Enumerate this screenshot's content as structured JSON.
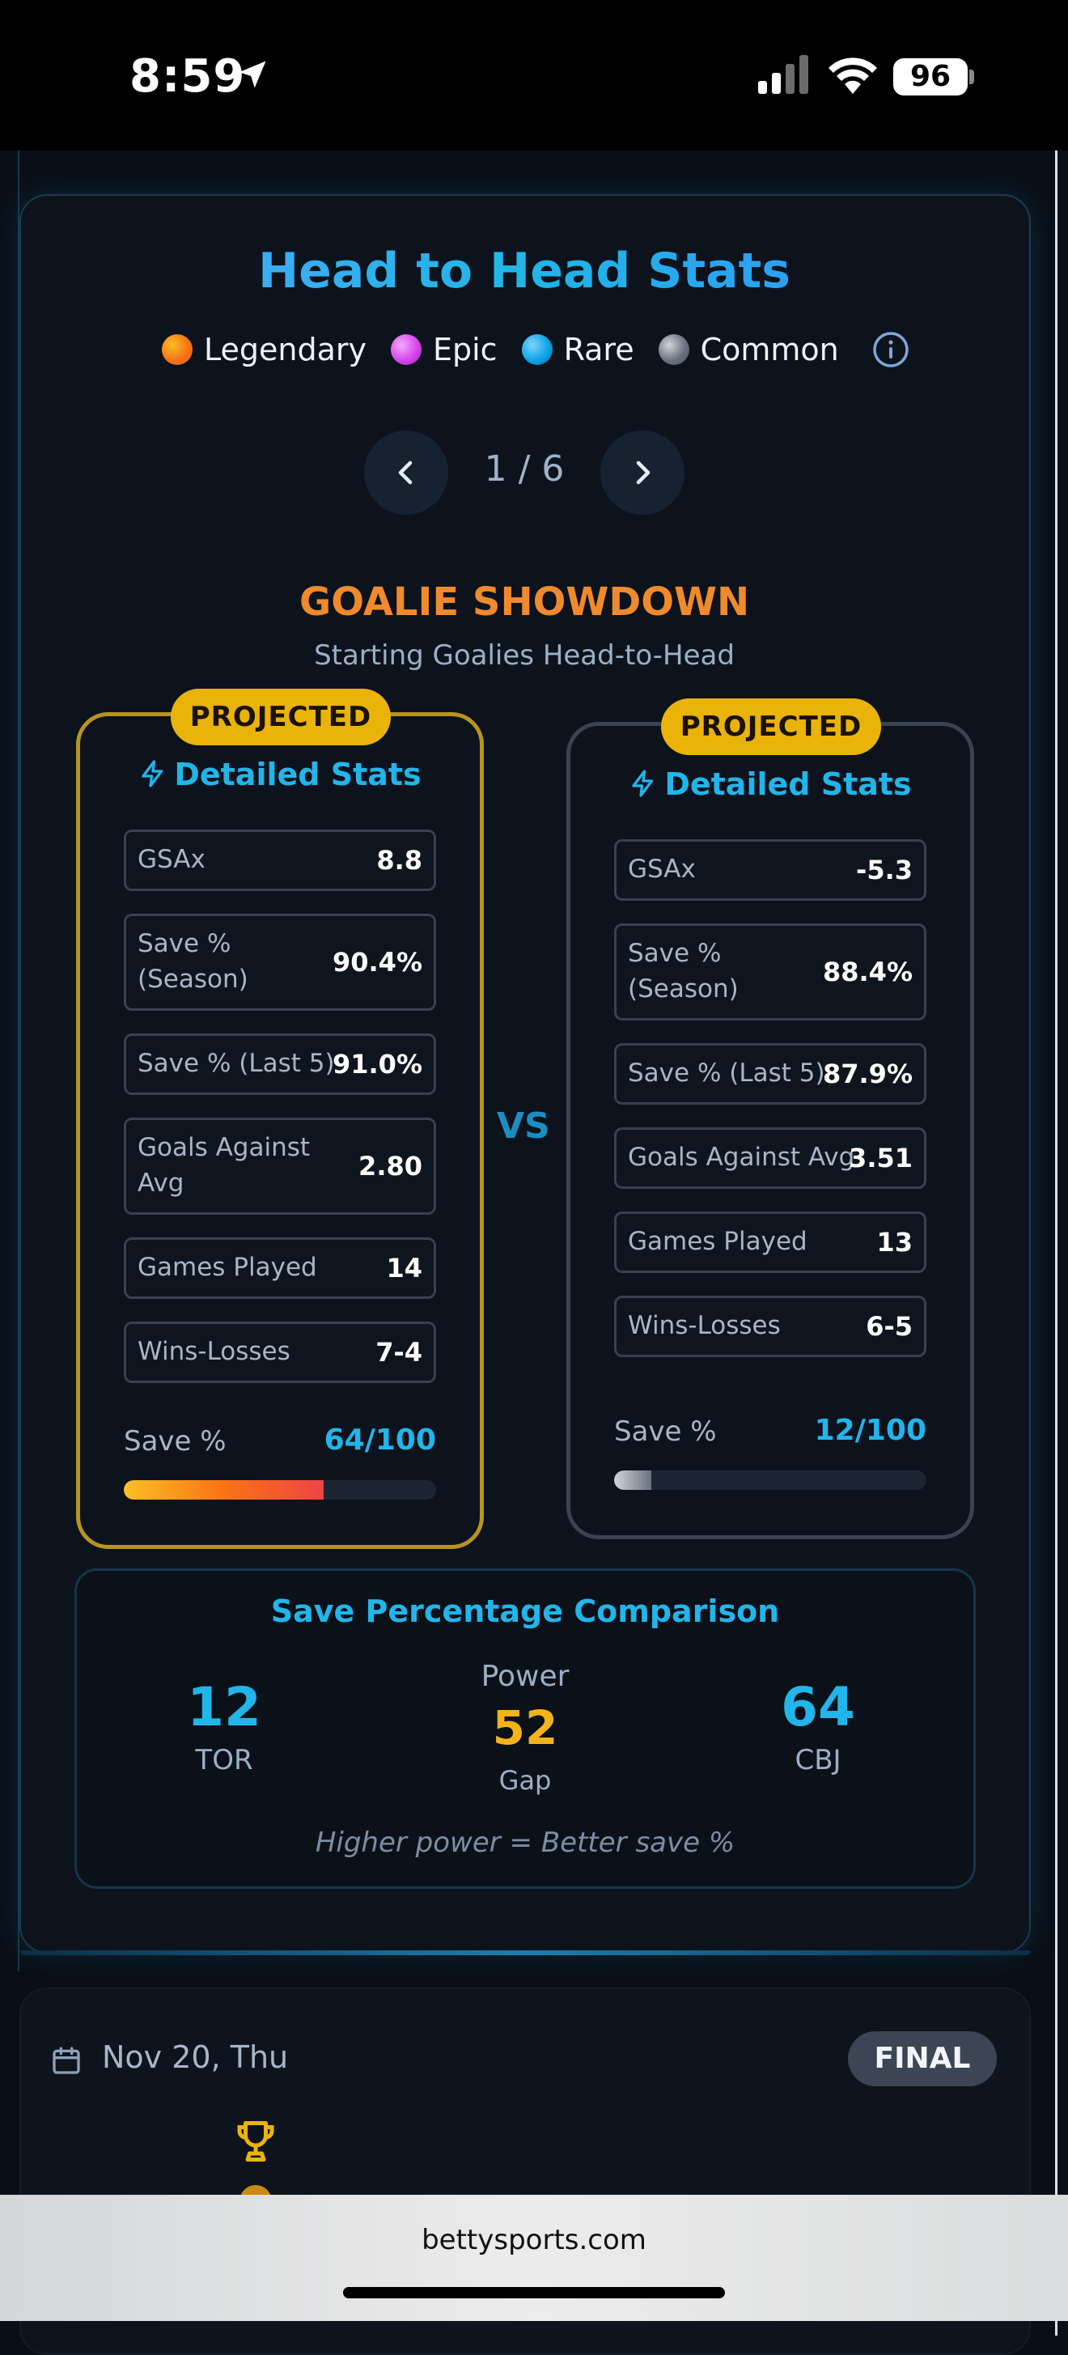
{
  "status_bar": {
    "time": "8:59",
    "battery": "96"
  },
  "panel": {
    "title": "Head to Head Stats",
    "legend": [
      {
        "label": "Legendary",
        "color": "#f97316"
      },
      {
        "label": "Epic",
        "color": "#d946ef"
      },
      {
        "label": "Rare",
        "color": "#0ea5e9"
      },
      {
        "label": "Common",
        "color": "#6b7280"
      }
    ],
    "pager": {
      "label": "1 / 6"
    },
    "section_title": "GOALIE SHOWDOWN",
    "section_subtitle": "Starting Goalies Head-to-Head",
    "vs": "VS"
  },
  "left_goalie": {
    "badge": "PROJECTED",
    "heading": "Detailed Stats",
    "stats": [
      {
        "label": "GSAx",
        "value": "8.8"
      },
      {
        "label": "Save %\n(Season)",
        "value": "90.4%"
      },
      {
        "label": "Save % (Last 5)",
        "value": "91.0%"
      },
      {
        "label": "Goals Against\nAvg",
        "value": "2.80"
      },
      {
        "label": "Games Played",
        "value": "14"
      },
      {
        "label": "Wins-Losses",
        "value": "7-4"
      }
    ],
    "meter": {
      "label": "Save %",
      "value_text": "64/100",
      "value": 64,
      "max": 100
    }
  },
  "right_goalie": {
    "badge": "PROJECTED",
    "heading": "Detailed Stats",
    "stats": [
      {
        "label": "GSAx",
        "value": "-5.3"
      },
      {
        "label": "Save %\n(Season)",
        "value": "88.4%"
      },
      {
        "label": "Save % (Last 5)",
        "value": "87.9%"
      },
      {
        "label": "Goals Against Avg",
        "value": "3.51"
      },
      {
        "label": "Games Played",
        "value": "13"
      },
      {
        "label": "Wins-Losses",
        "value": "6-5"
      }
    ],
    "meter": {
      "label": "Save %",
      "value_text": "12/100",
      "value": 12,
      "max": 100
    }
  },
  "comparison": {
    "title": "Save Percentage Comparison",
    "left_value": "12",
    "left_team": "TOR",
    "power_label": "Power",
    "gap_value": "52",
    "gap_label": "Gap",
    "right_value": "64",
    "right_team": "CBJ",
    "note": "Higher power = Better save %"
  },
  "next_game": {
    "date": "Nov 20, Thu",
    "status": "FINAL"
  },
  "browser": {
    "url": "bettysports.com"
  }
}
